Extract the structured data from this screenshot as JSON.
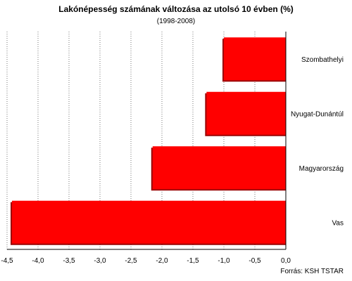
{
  "chart_data": {
    "type": "bar",
    "orientation": "horizontal",
    "title": "Lakónépesség számának változása az utolsó 10 évben (%)",
    "subtitle": "(1998-2008)",
    "categories": [
      "Szombathelyi",
      "Nyugat-Dunántúl",
      "Magyarország",
      "Vas"
    ],
    "values": [
      -1.0,
      -1.28,
      -2.15,
      -4.42
    ],
    "xlim": [
      -4.5,
      0.0
    ],
    "xticks": [
      "-4,5",
      "-4,0",
      "-3,5",
      "-3,0",
      "-2,5",
      "-2,0",
      "-1,5",
      "-1,0",
      "-0,5",
      "0,0"
    ],
    "xtick_values": [
      -4.5,
      -4.0,
      -3.5,
      -3.0,
      -2.5,
      -2.0,
      -1.5,
      -1.0,
      -0.5,
      0.0
    ],
    "grid": "vertical-dotted",
    "bar_color": "#ff0000",
    "source": "Forrás: KSH TSTAR"
  }
}
